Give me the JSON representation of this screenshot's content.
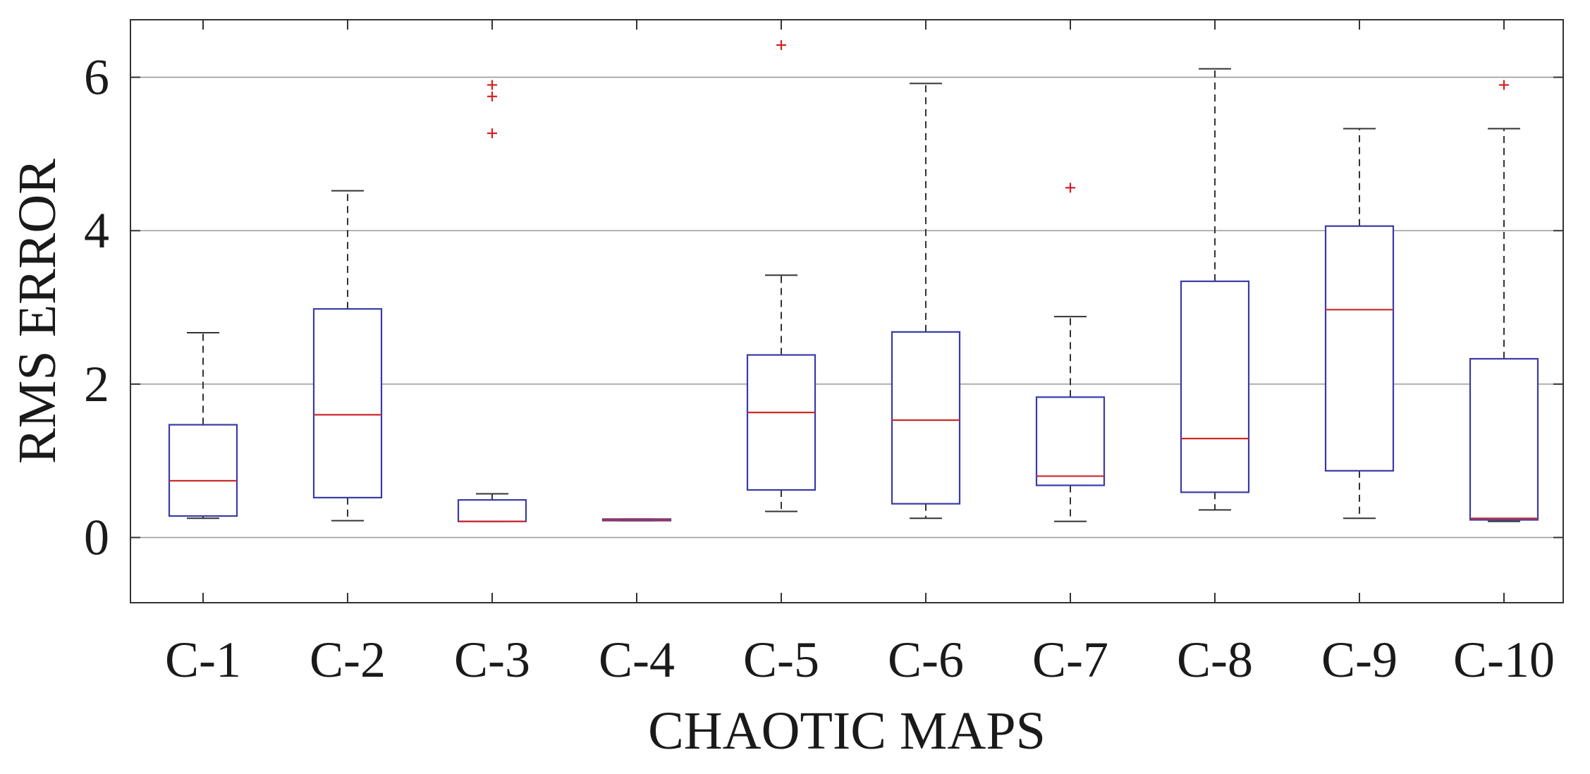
{
  "chart_data": {
    "type": "box",
    "title": "",
    "xlabel": "CHAOTIC MAPS",
    "ylabel": "RMS ERROR",
    "ylim": [
      -0.85,
      6.75
    ],
    "yticks": [
      0,
      2,
      4,
      6
    ],
    "grid": "horizontal",
    "categories": [
      "C-1",
      "C-2",
      "C-3",
      "C-4",
      "C-5",
      "C-6",
      "C-7",
      "C-8",
      "C-9",
      "C-10"
    ],
    "boxes": [
      {
        "category": "C-1",
        "whisker_low": 0.25,
        "q1": 0.28,
        "median": 0.74,
        "q3": 1.47,
        "whisker_high": 2.67,
        "outliers": []
      },
      {
        "category": "C-2",
        "whisker_low": 0.22,
        "q1": 0.52,
        "median": 1.6,
        "q3": 2.98,
        "whisker_high": 4.52,
        "outliers": []
      },
      {
        "category": "C-3",
        "whisker_low": 0.21,
        "q1": 0.21,
        "median": 0.21,
        "q3": 0.49,
        "whisker_high": 0.57,
        "outliers": [
          5.27,
          5.75,
          5.9
        ]
      },
      {
        "category": "C-4",
        "whisker_low": 0.22,
        "q1": 0.22,
        "median": 0.23,
        "q3": 0.24,
        "whisker_high": 0.24,
        "outliers": []
      },
      {
        "category": "C-5",
        "whisker_low": 0.34,
        "q1": 0.62,
        "median": 1.63,
        "q3": 2.38,
        "whisker_high": 3.42,
        "outliers": [
          6.42
        ]
      },
      {
        "category": "C-6",
        "whisker_low": 0.25,
        "q1": 0.44,
        "median": 1.53,
        "q3": 2.68,
        "whisker_high": 5.92,
        "outliers": []
      },
      {
        "category": "C-7",
        "whisker_low": 0.21,
        "q1": 0.68,
        "median": 0.8,
        "q3": 1.83,
        "whisker_high": 2.88,
        "outliers": [
          4.56
        ]
      },
      {
        "category": "C-8",
        "whisker_low": 0.36,
        "q1": 0.59,
        "median": 1.29,
        "q3": 3.34,
        "whisker_high": 6.11,
        "outliers": []
      },
      {
        "category": "C-9",
        "whisker_low": 0.25,
        "q1": 0.87,
        "median": 2.97,
        "q3": 4.06,
        "whisker_high": 5.33,
        "outliers": []
      },
      {
        "category": "C-10",
        "whisker_low": 0.21,
        "q1": 0.23,
        "median": 0.25,
        "q3": 2.33,
        "whisker_high": 5.33,
        "outliers": [
          5.9
        ]
      }
    ],
    "colors": {
      "box": "#3a3aa8",
      "median": "#cc2a2a",
      "whisker": "#333333",
      "outlier": "#d42020",
      "grid": "#9a9a9a",
      "axis": "#333333"
    }
  }
}
